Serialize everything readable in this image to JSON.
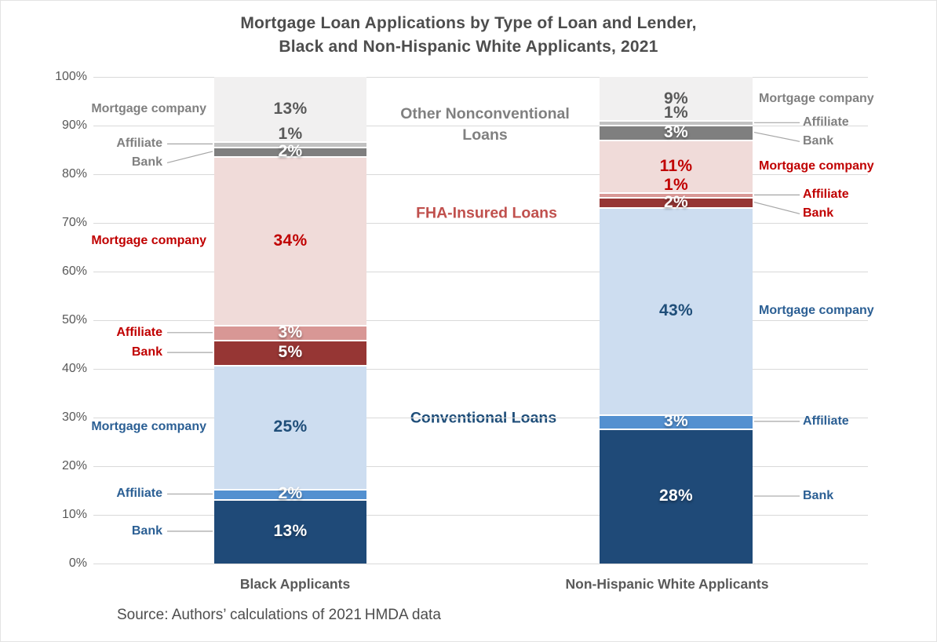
{
  "title": {
    "line1": "Mortgage Loan Applications by Type of Loan and Lender,",
    "line2": "Black and Non-Hispanic White Applicants, 2021"
  },
  "source": "Source: Authors’ calculations of 2021 HMDA data",
  "colors": {
    "background": "#ffffff",
    "title": "#4d4d4d",
    "axis_text": "#595959",
    "category_label": "#595959",
    "gridline": "#d9d9d9",
    "leader_line": "#a6a6a6",
    "white_value_text": "#ffffff",
    "source_text": "#4d4d4d"
  },
  "chart_data": {
    "type": "bar",
    "stacked": true,
    "unit": "%",
    "ylim": [
      0,
      100
    ],
    "grid": true,
    "legend_position": "none",
    "yticks": [
      "0%",
      "10%",
      "20%",
      "30%",
      "40%",
      "50%",
      "60%",
      "70%",
      "80%",
      "90%",
      "100%"
    ],
    "categories": [
      "Black Applicants",
      "Non-Hispanic White Applicants"
    ],
    "loan_types": [
      {
        "label": "Conventional Loans",
        "center_label_color": "#1f4e79",
        "side_label_color": "#2b5f94",
        "value_label_color": "#1f4e79",
        "lenders": [
          {
            "name": "Bank",
            "color": "#1f4a78",
            "values": [
              13,
              28
            ]
          },
          {
            "name": "Affiliate",
            "color": "#5390d0",
            "values": [
              2,
              3
            ]
          },
          {
            "name": "Mortgage company",
            "color": "#cdddf0",
            "values": [
              25,
              43
            ]
          }
        ]
      },
      {
        "label": "FHA-Insured Loans",
        "center_label_color": "#c0504d",
        "side_label_color": "#c00000",
        "value_label_color": "#c00000",
        "lenders": [
          {
            "name": "Bank",
            "color": "#963634",
            "values": [
              5,
              2
            ]
          },
          {
            "name": "Affiliate",
            "color": "#d89795",
            "values": [
              3,
              1
            ]
          },
          {
            "name": "Mortgage company",
            "color": "#f0dbd9",
            "values": [
              34,
              11
            ]
          }
        ]
      },
      {
        "label": "Other Nonconventional Loans",
        "center_label_color": "#808080",
        "side_label_color": "#808080",
        "value_label_color": "#595959",
        "lenders": [
          {
            "name": "Bank",
            "color": "#7f7f7f",
            "values": [
              2,
              3
            ]
          },
          {
            "name": "Affiliate",
            "color": "#c1c1c1",
            "values": [
              1,
              1
            ]
          },
          {
            "name": "Mortgage company",
            "color": "#f1f0f0",
            "values": [
              13,
              9
            ]
          }
        ]
      }
    ]
  }
}
